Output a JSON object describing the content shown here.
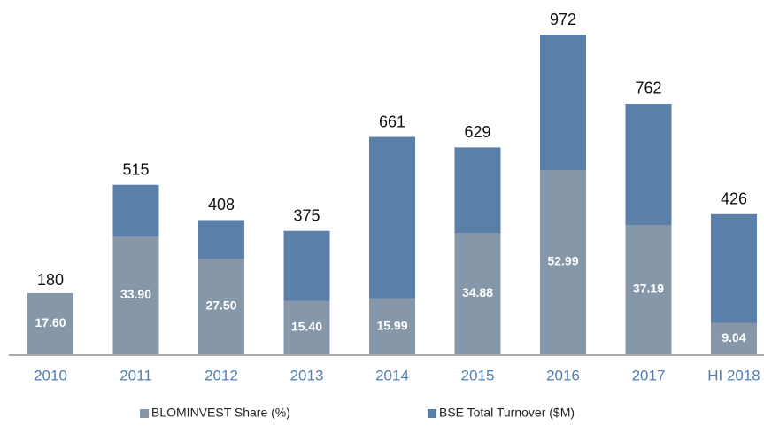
{
  "chart_data": {
    "type": "bar",
    "categories": [
      "2010",
      "2011",
      "2012",
      "2013",
      "2014",
      "2015",
      "2016",
      "2017",
      "HI 2018"
    ],
    "series": [
      {
        "name": "BLOMINVEST Share (%)",
        "color": "#8597a8",
        "values": [
          17.6,
          33.9,
          27.5,
          15.4,
          15.99,
          34.88,
          52.99,
          37.19,
          9.04
        ],
        "value_labels": [
          "17.60",
          "33.90",
          "27.50",
          "15.40",
          "15.99",
          "34.88",
          "52.99",
          "37.19",
          "9.04"
        ]
      },
      {
        "name": "BSE Total Turnover ($M)",
        "color": "#5a7fa9",
        "values": [
          180,
          515,
          408,
          375,
          661,
          629,
          972,
          762,
          426
        ]
      }
    ],
    "legend": "bottom"
  }
}
